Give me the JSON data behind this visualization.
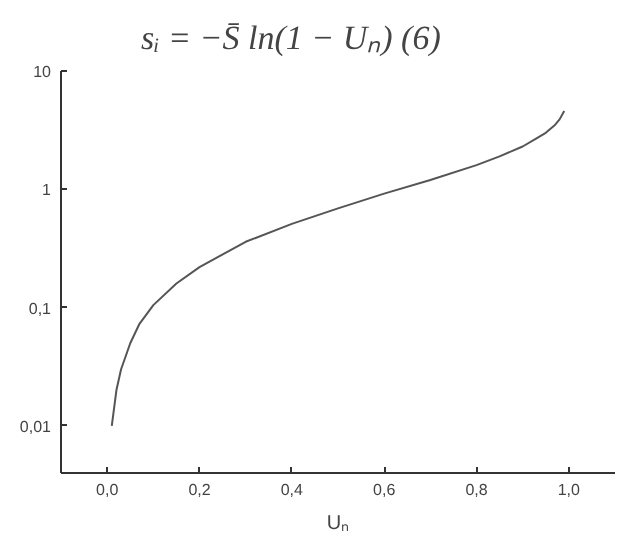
{
  "chart_data": {
    "type": "line",
    "annotations": [
      "sᵢ = −S̄ ln(1 − Uₙ)        (6)"
    ],
    "xlabel": "Uₙ",
    "x": [
      0.01,
      0.02,
      0.03,
      0.05,
      0.07,
      0.1,
      0.15,
      0.2,
      0.3,
      0.4,
      0.5,
      0.6,
      0.7,
      0.8,
      0.85,
      0.9,
      0.93,
      0.95,
      0.97,
      0.98,
      0.99
    ],
    "series": [
      {
        "color": "#555555",
        "values": [
          0.01,
          0.02,
          0.03,
          0.05,
          0.073,
          0.105,
          0.16,
          0.22,
          0.36,
          0.51,
          0.69,
          0.92,
          1.2,
          1.6,
          1.9,
          2.3,
          2.7,
          3.0,
          3.5,
          3.9,
          4.6
        ]
      }
    ],
    "log": "y",
    "xlim": [
      -0.1,
      1.1
    ],
    "ylim": [
      0.004,
      10
    ],
    "xticks": [
      {
        "value": 0.0,
        "label": "0,0"
      },
      {
        "value": 0.2,
        "label": "0,2"
      },
      {
        "value": 0.4,
        "label": "0,4"
      },
      {
        "value": 0.6,
        "label": "0,6"
      },
      {
        "value": 0.8,
        "label": "0,8"
      },
      {
        "value": 1.0,
        "label": "1,0"
      }
    ],
    "yticks": [
      {
        "value": 0.01,
        "label": "0,01"
      },
      {
        "value": 0.1,
        "label": "0,1"
      },
      1,
      10
    ],
    "marker": "none",
    "line_style": "solid"
  }
}
